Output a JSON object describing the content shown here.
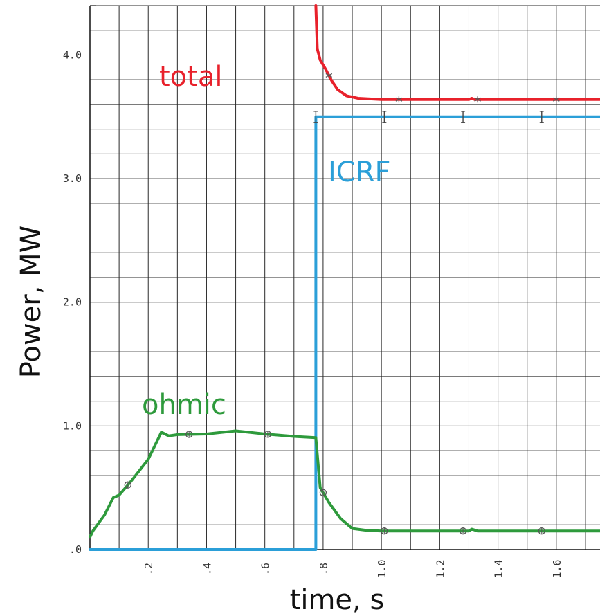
{
  "chart_data": {
    "type": "line",
    "xlabel": "time, s",
    "ylabel": "Power, MW",
    "xlim": [
      0,
      1.75
    ],
    "ylim": [
      0,
      4.4
    ],
    "grid": true,
    "x_ticks": [
      {
        "value": 0.2,
        "label": ".2"
      },
      {
        "value": 0.4,
        "label": ".4"
      },
      {
        "value": 0.6,
        "label": ".6"
      },
      {
        "value": 0.8,
        "label": ".8"
      },
      {
        "value": 1.0,
        "label": "1.0"
      },
      {
        "value": 1.2,
        "label": "1.2"
      },
      {
        "value": 1.4,
        "label": "1.4"
      },
      {
        "value": 1.6,
        "label": "1.6"
      }
    ],
    "y_ticks": [
      {
        "value": 0,
        "label": ".0"
      },
      {
        "value": 1.0,
        "label": "1.0"
      },
      {
        "value": 2.0,
        "label": "2.0"
      },
      {
        "value": 3.0,
        "label": "3.0"
      },
      {
        "value": 4.0,
        "label": "4.0"
      }
    ],
    "series": [
      {
        "name": "total",
        "color": "#e8212b",
        "marker": "*",
        "points": [
          [
            0.775,
            4.4
          ],
          [
            0.78,
            4.05
          ],
          [
            0.79,
            3.96
          ],
          [
            0.81,
            3.88
          ],
          [
            0.83,
            3.79
          ],
          [
            0.85,
            3.72
          ],
          [
            0.88,
            3.67
          ],
          [
            0.92,
            3.65
          ],
          [
            1.0,
            3.64
          ],
          [
            1.3,
            3.64
          ],
          [
            1.31,
            3.65
          ],
          [
            1.32,
            3.64
          ],
          [
            1.5,
            3.64
          ],
          [
            1.75,
            3.64
          ]
        ],
        "marker_x": [
          0.82,
          1.06,
          1.33,
          1.6
        ]
      },
      {
        "name": "ICRF",
        "color": "#2b9fd8",
        "marker": "I",
        "points": [
          [
            0,
            0
          ],
          [
            0.775,
            0
          ],
          [
            0.775,
            3.5
          ],
          [
            1.75,
            3.5
          ]
        ],
        "marker_x": [
          0.775,
          1.01,
          1.28,
          1.55
        ]
      },
      {
        "name": "ohmic",
        "color": "#2e9a3c",
        "marker": "o",
        "points": [
          [
            0,
            0.1
          ],
          [
            0.01,
            0.15
          ],
          [
            0.05,
            0.28
          ],
          [
            0.08,
            0.42
          ],
          [
            0.1,
            0.44
          ],
          [
            0.14,
            0.55
          ],
          [
            0.2,
            0.73
          ],
          [
            0.245,
            0.95
          ],
          [
            0.27,
            0.92
          ],
          [
            0.3,
            0.93
          ],
          [
            0.4,
            0.935
          ],
          [
            0.5,
            0.96
          ],
          [
            0.6,
            0.935
          ],
          [
            0.7,
            0.915
          ],
          [
            0.775,
            0.905
          ],
          [
            0.79,
            0.5
          ],
          [
            0.82,
            0.38
          ],
          [
            0.86,
            0.25
          ],
          [
            0.9,
            0.17
          ],
          [
            0.95,
            0.155
          ],
          [
            1.0,
            0.15
          ],
          [
            1.3,
            0.15
          ],
          [
            1.31,
            0.165
          ],
          [
            1.33,
            0.15
          ],
          [
            1.75,
            0.15
          ]
        ],
        "marker_x": [
          0.13,
          0.34,
          0.61,
          0.8,
          1.01,
          1.28,
          1.55
        ]
      }
    ]
  }
}
